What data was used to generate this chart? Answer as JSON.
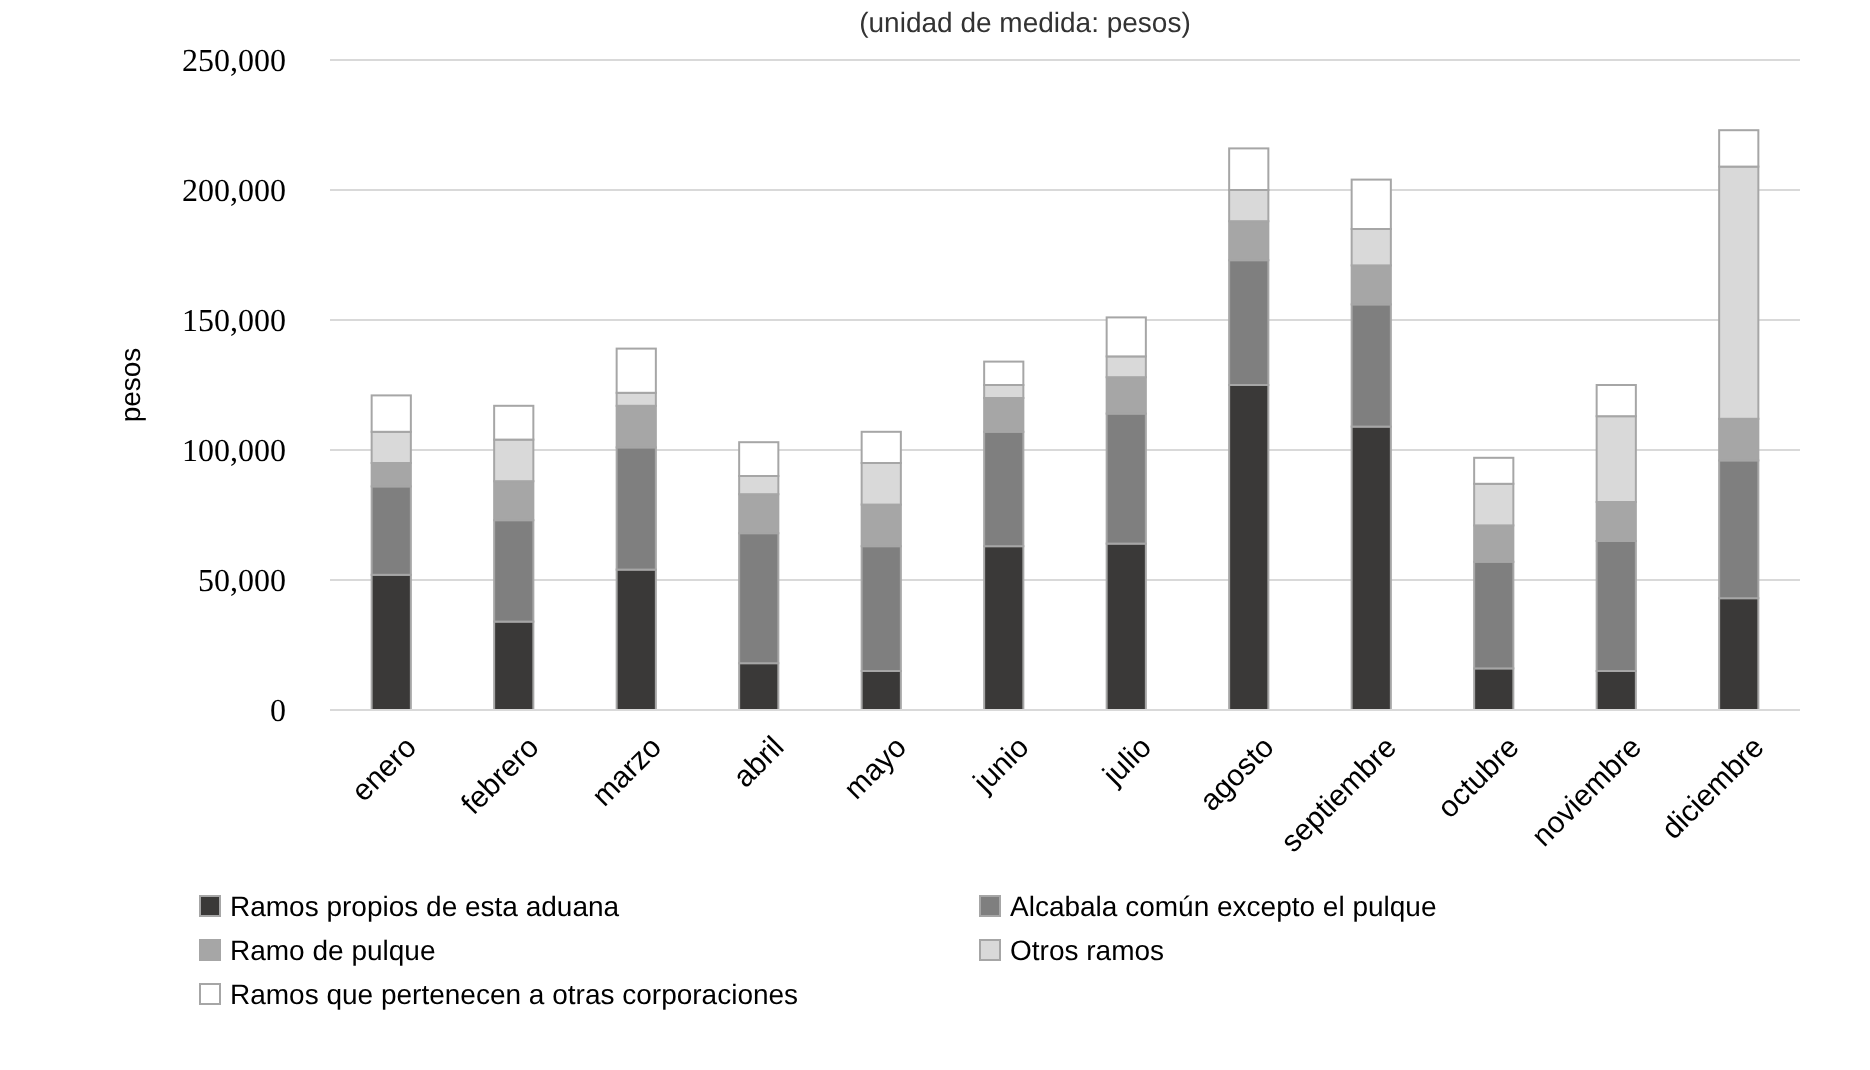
{
  "chart_data": {
    "type": "bar",
    "stacked": true,
    "subtitle": "(unidad de medida: pesos)",
    "ylabel": "pesos",
    "categories": [
      "enero",
      "febrero",
      "marzo",
      "abril",
      "mayo",
      "junio",
      "julio",
      "agosto",
      "septiembre",
      "octubre",
      "noviembre",
      "diciembre"
    ],
    "series": [
      {
        "name": "Ramos propios de esta aduana",
        "color": "#3a3938",
        "values": [
          52000,
          34000,
          54000,
          18000,
          15000,
          63000,
          64000,
          125000,
          109000,
          16000,
          15000,
          43000
        ]
      },
      {
        "name": "Alcabala común excepto el pulque",
        "color": "#7f7f7f",
        "values": [
          34000,
          39000,
          47000,
          50000,
          48000,
          44000,
          50000,
          48000,
          47000,
          41000,
          50000,
          53000
        ]
      },
      {
        "name": "Ramo de pulque",
        "color": "#a6a6a6",
        "values": [
          9000,
          15000,
          16000,
          15000,
          16000,
          13000,
          14000,
          15000,
          15000,
          14000,
          15000,
          16000
        ]
      },
      {
        "name": "Otros ramos",
        "color": "#d9d9d9",
        "values": [
          12000,
          16000,
          5000,
          7000,
          16000,
          5000,
          8000,
          12000,
          14000,
          16000,
          33000,
          97000
        ]
      },
      {
        "name": "Ramos que pertenecen a otras corporaciones",
        "color": "#ffffff",
        "values": [
          14000,
          13000,
          17000,
          13000,
          12000,
          9000,
          15000,
          16000,
          19000,
          10000,
          12000,
          14000
        ]
      }
    ],
    "ylim": [
      0,
      250000
    ],
    "yticks": [
      {
        "value": 0,
        "label": "0"
      },
      {
        "value": 50000,
        "label": "50,000"
      },
      {
        "value": 100000,
        "label": "100,000"
      },
      {
        "value": 150000,
        "label": "150,000"
      },
      {
        "value": 200000,
        "label": "200,000"
      },
      {
        "value": 250000,
        "label": "250,000"
      }
    ],
    "grid": "y",
    "legend": "bottom"
  }
}
